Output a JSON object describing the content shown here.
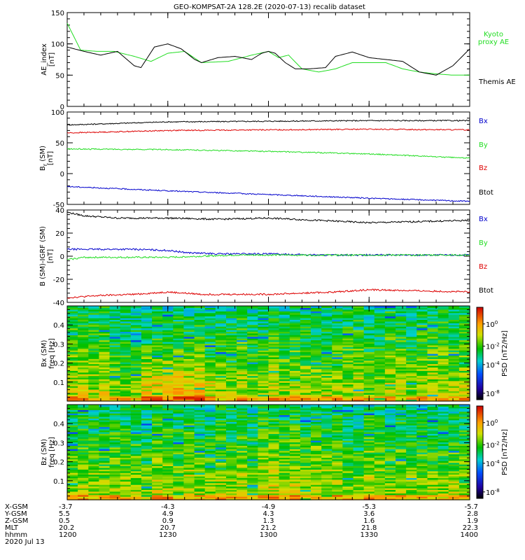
{
  "title": "GEO-KOMPSAT-2A 128.2E (2020-07-13) recalib dataset",
  "colors": {
    "black": "#000000",
    "green": "#22dd22",
    "red": "#dd0000",
    "blue": "#0000cc"
  },
  "time_axis": {
    "tick_minutes": [
      0,
      30,
      60,
      90,
      120
    ],
    "range_minutes": [
      0,
      120
    ]
  },
  "ephemeris": {
    "rows": [
      {
        "label": "X-GSM",
        "values": [
          "-3.7",
          "-4.3",
          "-4.9",
          "-5.3",
          "-5.7"
        ]
      },
      {
        "label": "Y-GSM",
        "values": [
          "5.5",
          "4.9",
          "4.3",
          "3.6",
          "2.8"
        ]
      },
      {
        "label": "Z-GSM",
        "values": [
          "0.5",
          "0.9",
          "1.3",
          "1.6",
          "1.9"
        ]
      },
      {
        "label": "MLT",
        "values": [
          "20.2",
          "20.7",
          "21.2",
          "21.8",
          "22.3"
        ]
      },
      {
        "label": "hhmm",
        "values": [
          "1200",
          "1230",
          "1300",
          "1330",
          "1400"
        ]
      }
    ],
    "date": "2020 Jul 13"
  },
  "chart_data": [
    {
      "type": "line",
      "ylabel": [
        "AE_index",
        "[nT]"
      ],
      "ylim": [
        0,
        150
      ],
      "yticks": [
        0,
        50,
        100,
        150
      ],
      "legend": [
        {
          "text": "Kyoto",
          "color_key": "green"
        },
        {
          "text": "proxy AE",
          "color_key": "green"
        },
        {
          "text": "Themis AE",
          "color_key": "black"
        }
      ],
      "series": [
        {
          "name": "Kyoto proxy AE",
          "color_key": "green",
          "x": [
            0,
            4,
            9,
            14,
            20,
            25,
            30,
            35,
            40,
            48,
            55,
            60,
            63,
            66,
            70,
            75,
            80,
            85,
            90,
            95,
            100,
            105,
            110,
            115,
            120
          ],
          "values": [
            133,
            90,
            88,
            88,
            80,
            72,
            85,
            88,
            70,
            72,
            82,
            88,
            78,
            82,
            60,
            55,
            60,
            70,
            70,
            70,
            60,
            55,
            52,
            50,
            50
          ]
        },
        {
          "name": "Themis AE",
          "color_key": "black",
          "x": [
            0,
            5,
            10,
            15,
            20,
            22,
            26,
            30,
            34,
            38,
            40,
            45,
            50,
            55,
            58,
            60,
            62,
            65,
            68,
            72,
            77,
            80,
            85,
            90,
            95,
            100,
            105,
            110,
            115,
            120
          ],
          "values": [
            95,
            88,
            82,
            88,
            65,
            62,
            95,
            100,
            92,
            75,
            70,
            78,
            80,
            75,
            85,
            88,
            85,
            70,
            60,
            60,
            62,
            80,
            87,
            78,
            75,
            72,
            55,
            50,
            65,
            92
          ]
        }
      ]
    },
    {
      "type": "line",
      "ylabel": [
        "B",
        "r",
        "(SM)",
        "[nT]"
      ],
      "ylim": [
        -50,
        100
      ],
      "yticks": [
        -50,
        0,
        50,
        100
      ],
      "legend": [
        {
          "text": "Bx",
          "color_key": "blue"
        },
        {
          "text": "By",
          "color_key": "green"
        },
        {
          "text": "Bz",
          "color_key": "red"
        },
        {
          "text": "Btot",
          "color_key": "black"
        }
      ],
      "series": [
        {
          "name": "Btot",
          "color_key": "black",
          "x": [
            0,
            30,
            60,
            90,
            120
          ],
          "values": [
            79,
            84,
            85,
            86,
            86
          ]
        },
        {
          "name": "Bz",
          "color_key": "red",
          "x": [
            0,
            30,
            60,
            90,
            120
          ],
          "values": [
            66,
            70,
            71,
            72,
            71
          ]
        },
        {
          "name": "By",
          "color_key": "green",
          "x": [
            0,
            30,
            60,
            90,
            120
          ],
          "values": [
            40,
            39,
            36,
            32,
            25
          ]
        },
        {
          "name": "Bx",
          "color_key": "blue",
          "x": [
            0,
            30,
            60,
            90,
            120
          ],
          "values": [
            -21,
            -28,
            -34,
            -40,
            -45
          ]
        }
      ]
    },
    {
      "type": "line",
      "ylabel": [
        "B (SM)-IGRF (SM)",
        "[nT]"
      ],
      "ylim": [
        -40,
        40
      ],
      "yticks": [
        -40,
        -20,
        0,
        20,
        40
      ],
      "legend": [
        {
          "text": "Bx",
          "color_key": "blue"
        },
        {
          "text": "By",
          "color_key": "green"
        },
        {
          "text": "Bz",
          "color_key": "red"
        },
        {
          "text": "Btot",
          "color_key": "black"
        }
      ],
      "series": [
        {
          "name": "Btot",
          "color_key": "black",
          "x": [
            0,
            5,
            15,
            30,
            45,
            60,
            75,
            90,
            105,
            120
          ],
          "values": [
            38,
            35,
            33,
            33,
            32,
            33,
            31,
            29,
            30,
            31
          ]
        },
        {
          "name": "Bx",
          "color_key": "blue",
          "x": [
            0,
            10,
            20,
            30,
            36,
            45,
            60,
            75,
            90,
            105,
            120
          ],
          "values": [
            6,
            6,
            6,
            5,
            3,
            2,
            2,
            1,
            1,
            1,
            1
          ]
        },
        {
          "name": "By",
          "color_key": "green",
          "x": [
            0,
            5,
            15,
            30,
            40,
            50,
            60,
            90,
            120
          ],
          "values": [
            -3,
            -1,
            -1,
            -1,
            0,
            1,
            1,
            1,
            1
          ]
        },
        {
          "name": "Bz",
          "color_key": "red",
          "x": [
            0,
            10,
            20,
            30,
            40,
            60,
            80,
            90,
            105,
            120
          ],
          "values": [
            -36,
            -34,
            -33,
            -31,
            -33,
            -33,
            -31,
            -29,
            -30,
            -31
          ]
        }
      ]
    },
    {
      "type": "heatmap",
      "ylabel": [
        "Bx (SM)",
        "freq [Hz]"
      ],
      "ylim": [
        0,
        0.5
      ],
      "yticks": [
        0.1,
        0.2,
        0.3,
        0.4
      ],
      "colorbar": {
        "label": "PSD [nT2/Hz]",
        "ticks": [
          "10",
          "10",
          "10",
          "10"
        ],
        "tick_exponents": [
          "0",
          "-2",
          "-4",
          "-8"
        ]
      }
    },
    {
      "type": "heatmap",
      "ylabel": [
        "Bz (SM)",
        "freq [Hz]"
      ],
      "ylim": [
        0,
        0.5
      ],
      "yticks": [
        0.1,
        0.2,
        0.3,
        0.4
      ],
      "colorbar": {
        "label": "PSD [nT2/Hz]",
        "ticks": [
          "10",
          "10",
          "10",
          "10"
        ],
        "tick_exponents": [
          "0",
          "-2",
          "-4",
          "-8"
        ]
      }
    }
  ]
}
